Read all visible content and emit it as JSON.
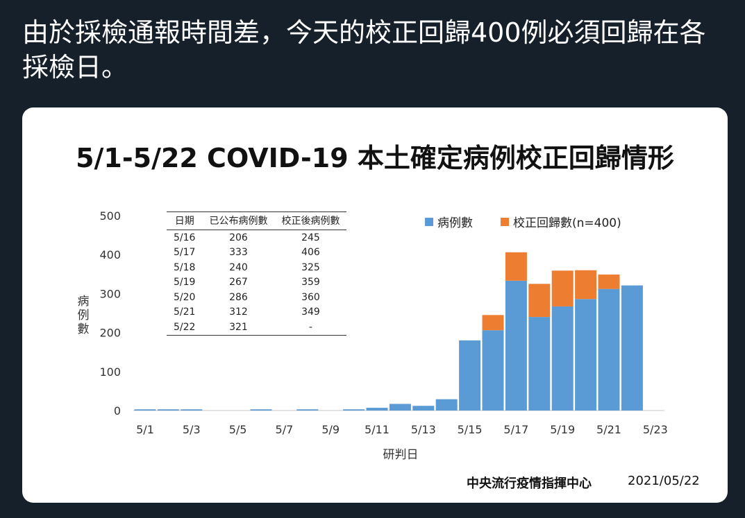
{
  "tweet": {
    "text": "由於採檢通報時間差，今天的校正回歸400例必須回歸在各採檢日。"
  },
  "chart_data": {
    "type": "bar",
    "stacked": true,
    "title": "5/1-5/22 COVID-19 本土確定病例校正回歸情形",
    "ylabel": "病例數",
    "xlabel": "研判日",
    "ylim": [
      0,
      500
    ],
    "yticks": [
      "0",
      "100",
      "200",
      "300",
      "400",
      "500"
    ],
    "categories": [
      "5/1",
      "5/2",
      "5/3",
      "5/4",
      "5/5",
      "5/6",
      "5/7",
      "5/8",
      "5/9",
      "5/10",
      "5/11",
      "5/12",
      "5/13",
      "5/14",
      "5/15",
      "5/16",
      "5/17",
      "5/18",
      "5/19",
      "5/20",
      "5/21",
      "5/22"
    ],
    "xtick_labels": [
      "5/1",
      "5/3",
      "5/5",
      "5/7",
      "5/9",
      "5/11",
      "5/13",
      "5/15",
      "5/17",
      "5/19",
      "5/21",
      "5/23"
    ],
    "series": [
      {
        "name": "病例數",
        "color": "#5b9bd5",
        "values": [
          3,
          3,
          3,
          0,
          0,
          3,
          0,
          3,
          0,
          3,
          7,
          17,
          12,
          29,
          180,
          206,
          333,
          240,
          267,
          286,
          312,
          321
        ]
      },
      {
        "name": "校正回歸數(n=400)",
        "color": "#ed7d31",
        "values": [
          0,
          0,
          0,
          0,
          0,
          0,
          0,
          0,
          0,
          0,
          0,
          0,
          0,
          0,
          0,
          39,
          73,
          85,
          92,
          74,
          37,
          0
        ]
      }
    ],
    "legend_position": "top-right",
    "grid": false,
    "table": {
      "headers": [
        "日期",
        "已公布病例數",
        "校正後病例數"
      ],
      "rows": [
        [
          "5/16",
          "206",
          "245"
        ],
        [
          "5/17",
          "333",
          "406"
        ],
        [
          "5/18",
          "240",
          "325"
        ],
        [
          "5/19",
          "267",
          "359"
        ],
        [
          "5/20",
          "286",
          "360"
        ],
        [
          "5/21",
          "312",
          "349"
        ],
        [
          "5/22",
          "321",
          "-"
        ]
      ]
    }
  },
  "footer": {
    "source": "中央流行疫情指揮中心",
    "date": "2021/05/22"
  }
}
